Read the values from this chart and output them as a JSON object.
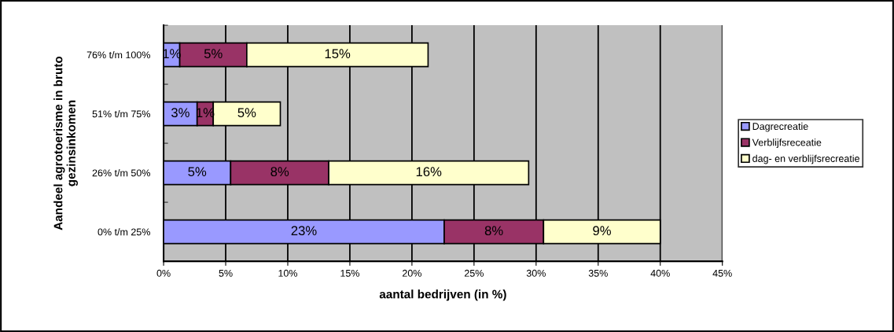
{
  "chart_data": {
    "type": "bar",
    "orientation": "horizontal",
    "stacked": true,
    "categories": [
      "76% t/m 100%",
      "51% t/m 75%",
      "26% t/m 50%",
      "0% t/m 25%"
    ],
    "series": [
      {
        "name": "Dagrecreatie",
        "color": "#9999ff",
        "values": [
          1.3,
          2.7,
          5.4,
          22.6
        ],
        "value_labels": [
          "1%",
          "3%",
          "5%",
          "23%"
        ]
      },
      {
        "name": "Verblijfsreceatie",
        "color": "#993366",
        "values": [
          5.4,
          1.3,
          7.9,
          8.0
        ],
        "value_labels": [
          "5%",
          "1%",
          "8%",
          "8%"
        ]
      },
      {
        "name": "dag- en verblijfsrecreatie",
        "color": "#ffffcc",
        "values": [
          14.6,
          5.4,
          16.1,
          9.4
        ],
        "value_labels": [
          "15%",
          "5%",
          "16%",
          "9%"
        ]
      }
    ],
    "xlim": [
      0,
      45
    ],
    "xticks": [
      {
        "value": 0,
        "label": "0%"
      },
      {
        "value": 5,
        "label": "5%"
      },
      {
        "value": 10,
        "label": "10%"
      },
      {
        "value": 15,
        "label": "15%"
      },
      {
        "value": 20,
        "label": "20%"
      },
      {
        "value": 25,
        "label": "25%"
      },
      {
        "value": 30,
        "label": "30%"
      },
      {
        "value": 35,
        "label": "35%"
      },
      {
        "value": 40,
        "label": "40%"
      },
      {
        "value": 45,
        "label": "45%"
      }
    ],
    "xlabel": "aantal bedrijven (in %)",
    "ylabel": "Aandeel agrotoerisme in bruto\ngezinsinkomen",
    "grid": "x",
    "legend": "right"
  }
}
